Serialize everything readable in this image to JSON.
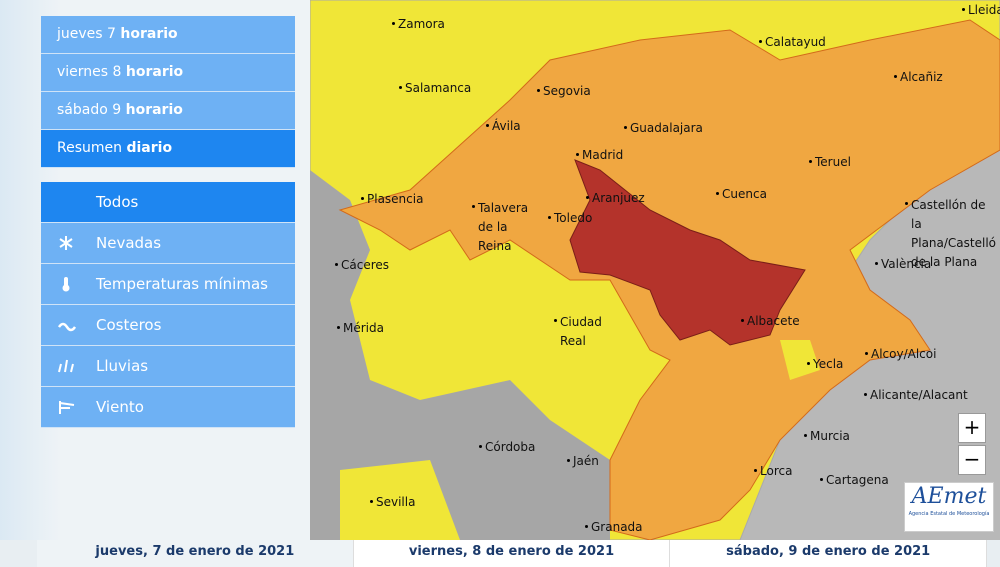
{
  "day_menu": [
    {
      "day": "jueves 7",
      "mode": "horario"
    },
    {
      "day": "viernes 8",
      "mode": "horario"
    },
    {
      "day": "sábado 9",
      "mode": "horario"
    },
    {
      "day": "Resumen",
      "mode": "diario"
    }
  ],
  "filters": [
    "Todos",
    "Nevadas",
    "Temperaturas mínimas",
    "Costeros",
    "Lluvias",
    "Viento"
  ],
  "map": {
    "cities": [
      "Zamora",
      "Lleida",
      "Calatayud",
      "Salamanca",
      "Segovia",
      "Alcañiz",
      "Ávila",
      "Guadalajara",
      "Madrid",
      "Teruel",
      "Plasencia",
      "Aranjuez",
      "Cuenca",
      "Castellón de la Plana/Castelló de la Plana",
      "Talavera de la Reina",
      "Toledo",
      "València",
      "Cáceres",
      "Mérida",
      "Ciudad Real",
      "Albacete",
      "Yecla",
      "Alcoy/Alcoi",
      "Alicante/Alacant",
      "Murcia",
      "Córdoba",
      "Jaén",
      "Lorca",
      "Cartagena",
      "Sevilla",
      "Granada"
    ],
    "zoom": [
      "+",
      "−"
    ],
    "logo": {
      "name": "AEmet",
      "subtitle": "Agencia Estatal de Meteorología"
    }
  },
  "date_tabs": [
    "jueves, 7 de enero de 2021",
    "viernes, 8 de enero de 2021",
    "sábado, 9 de enero de 2021"
  ]
}
